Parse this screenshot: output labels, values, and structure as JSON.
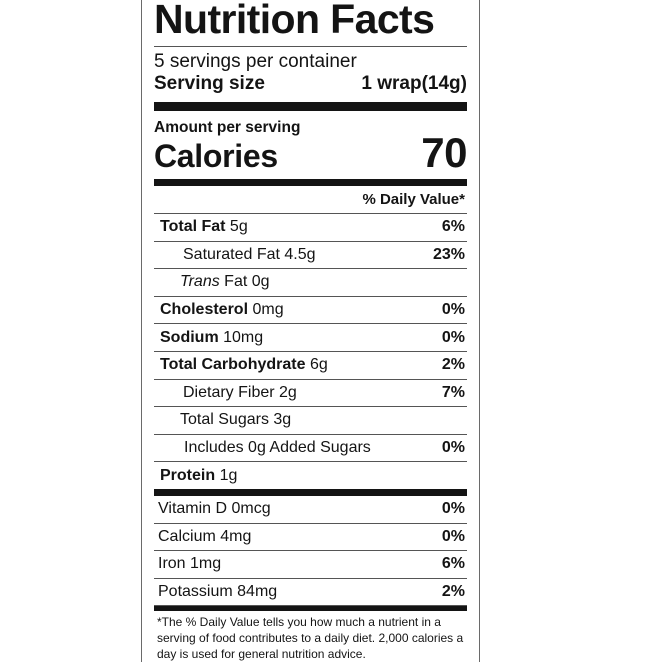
{
  "label": {
    "title": "Nutrition Facts",
    "servings_per_container": "5 servings per container",
    "serving_size_label": "Serving size",
    "serving_size_value": "1 wrap(14g)",
    "amount_per_serving": "Amount per serving",
    "calories_label": "Calories",
    "calories_value": "70",
    "daily_value_header": "% Daily Value*"
  },
  "nutrients": [
    {
      "bold": "Total Fat",
      "rest": " 5g",
      "pct": "6%"
    },
    {
      "bold": "",
      "rest": "Saturated Fat 4.5g",
      "pct": "23%"
    },
    {
      "italic": "Trans",
      "rest": " Fat 0g",
      "pct": ""
    },
    {
      "bold": "Cholesterol",
      "rest": " 0mg",
      "pct": "0%"
    },
    {
      "bold": "Sodium",
      "rest": " 10mg",
      "pct": "0%"
    },
    {
      "bold": "Total Carbohydrate",
      "rest": " 6g",
      "pct": "2%"
    },
    {
      "bold": "",
      "rest": "Dietary Fiber 2g",
      "pct": "7%"
    },
    {
      "bold": "",
      "rest": "Total Sugars 3g",
      "pct": ""
    },
    {
      "bold": "",
      "rest": "Includes 0g Added Sugars",
      "pct": "0%"
    },
    {
      "bold": "Protein",
      "rest": " 1g",
      "pct": ""
    }
  ],
  "vitamins": [
    {
      "label": "Vitamin D 0mcg",
      "pct": "0%"
    },
    {
      "label": "Calcium 4mg",
      "pct": "0%"
    },
    {
      "label": "Iron 1mg",
      "pct": "6%"
    },
    {
      "label": "Potassium 84mg",
      "pct": "2%"
    }
  ],
  "footnote": "*The % Daily Value tells you how much a nutrient in a serving of food contributes to a daily diet. 2,000 calories a day is used for general nutrition advice."
}
